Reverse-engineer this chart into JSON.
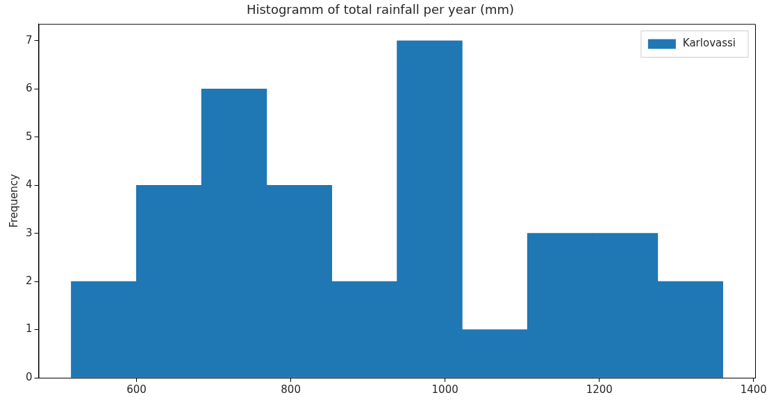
{
  "chart_data": {
    "type": "histogram",
    "title": "Histogramm of total rainfall per year (mm)",
    "ylabel": "Frequency",
    "bins": [
      515,
      600,
      684,
      769,
      853,
      938,
      1022,
      1107,
      1191,
      1276,
      1360
    ],
    "series": [
      {
        "name": "Karlovassi",
        "color": "#1f77b4",
        "values": [
          2,
          4,
          6,
          4,
          2,
          7,
          1,
          3,
          3,
          2
        ]
      }
    ],
    "xlim": [
      473,
      1402
    ],
    "xticks": [
      600,
      800,
      1000,
      1200,
      1400
    ],
    "ylim": [
      0,
      7.35
    ],
    "yticks": [
      0,
      1,
      2,
      3,
      4,
      5,
      6,
      7
    ],
    "grid": false,
    "legend": "top right"
  }
}
